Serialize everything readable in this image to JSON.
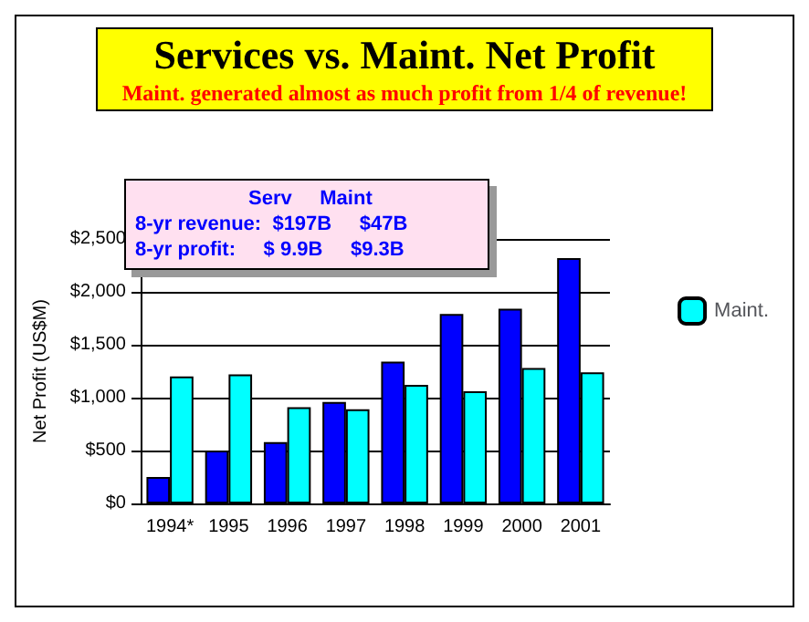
{
  "chart_data": {
    "type": "bar",
    "title": "Services vs. Maint. Net Profit",
    "subtitle": "Maint. generated almost as much profit from 1/4 of revenue!",
    "ylabel": "Net Profit (US$M)",
    "categories": [
      "1994*",
      "1995",
      "1996",
      "1997",
      "1998",
      "1999",
      "2000",
      "2001"
    ],
    "series": [
      {
        "color": "#0000ff",
        "values": [
          250,
          500,
          580,
          960,
          1340,
          1790,
          1840,
          2320
        ]
      },
      {
        "name": "Maint.",
        "color": "#00ffff",
        "values": [
          1200,
          1220,
          910,
          890,
          1120,
          1060,
          1280,
          1240
        ]
      }
    ],
    "ylim": [
      0,
      2500
    ],
    "yticks": [
      {
        "value": 0,
        "label": "$0"
      },
      {
        "value": 500,
        "label": "$500"
      },
      {
        "value": 1000,
        "label": "$1,000"
      },
      {
        "value": 1500,
        "label": "$1,500"
      },
      {
        "value": 2000,
        "label": "$2,000"
      },
      {
        "value": 2500,
        "label": "$2,500"
      }
    ],
    "annotations": [
      "Serv     Maint",
      "8-yr revenue:  $197B     $47B",
      "8-yr profit:     $ 9.9B     $9.3B"
    ],
    "grid": "y",
    "legend": "right"
  }
}
